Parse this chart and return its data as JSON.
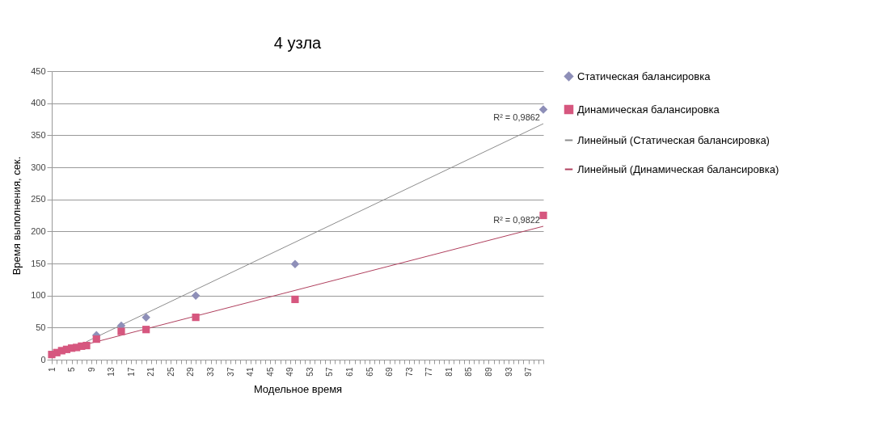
{
  "chart_data": {
    "type": "scatter",
    "title": "4 узла",
    "xlabel": "Модельное время",
    "ylabel": "Время выполнения, сек.",
    "xlim": [
      1,
      100
    ],
    "ylim": [
      0,
      450
    ],
    "yticks": [
      0,
      50,
      100,
      150,
      200,
      250,
      300,
      350,
      400,
      450
    ],
    "xticks": [
      1,
      {
        "value": 2,
        "label": null
      },
      {
        "value": 3,
        "label": null
      },
      {
        "value": 4,
        "label": null
      },
      5,
      {
        "value": 6,
        "label": null
      },
      {
        "value": 7,
        "label": null
      },
      {
        "value": 8,
        "label": null
      },
      9,
      {
        "value": 10,
        "label": null
      },
      {
        "value": 11,
        "label": null
      },
      {
        "value": 12,
        "label": null
      },
      13,
      {
        "value": 14,
        "label": null
      },
      {
        "value": 15,
        "label": null
      },
      {
        "value": 16,
        "label": null
      },
      17,
      {
        "value": 18,
        "label": null
      },
      {
        "value": 19,
        "label": null
      },
      {
        "value": 20,
        "label": null
      },
      21,
      {
        "value": 22,
        "label": null
      },
      {
        "value": 23,
        "label": null
      },
      {
        "value": 24,
        "label": null
      },
      25,
      {
        "value": 26,
        "label": null
      },
      {
        "value": 27,
        "label": null
      },
      {
        "value": 28,
        "label": null
      },
      29,
      {
        "value": 30,
        "label": null
      },
      {
        "value": 31,
        "label": null
      },
      {
        "value": 32,
        "label": null
      },
      33,
      {
        "value": 34,
        "label": null
      },
      {
        "value": 35,
        "label": null
      },
      {
        "value": 36,
        "label": null
      },
      37,
      {
        "value": 38,
        "label": null
      },
      {
        "value": 39,
        "label": null
      },
      {
        "value": 40,
        "label": null
      },
      41,
      {
        "value": 42,
        "label": null
      },
      {
        "value": 43,
        "label": null
      },
      {
        "value": 44,
        "label": null
      },
      45,
      {
        "value": 46,
        "label": null
      },
      {
        "value": 47,
        "label": null
      },
      {
        "value": 48,
        "label": null
      },
      49,
      {
        "value": 50,
        "label": null
      },
      {
        "value": 51,
        "label": null
      },
      {
        "value": 52,
        "label": null
      },
      53,
      {
        "value": 54,
        "label": null
      },
      {
        "value": 55,
        "label": null
      },
      {
        "value": 56,
        "label": null
      },
      57,
      {
        "value": 58,
        "label": null
      },
      {
        "value": 59,
        "label": null
      },
      {
        "value": 60,
        "label": null
      },
      61,
      {
        "value": 62,
        "label": null
      },
      {
        "value": 63,
        "label": null
      },
      {
        "value": 64,
        "label": null
      },
      65,
      {
        "value": 66,
        "label": null
      },
      {
        "value": 67,
        "label": null
      },
      {
        "value": 68,
        "label": null
      },
      69,
      {
        "value": 70,
        "label": null
      },
      {
        "value": 71,
        "label": null
      },
      {
        "value": 72,
        "label": null
      },
      73,
      {
        "value": 74,
        "label": null
      },
      {
        "value": 75,
        "label": null
      },
      {
        "value": 76,
        "label": null
      },
      77,
      {
        "value": 78,
        "label": null
      },
      {
        "value": 79,
        "label": null
      },
      {
        "value": 80,
        "label": null
      },
      81,
      {
        "value": 82,
        "label": null
      },
      {
        "value": 83,
        "label": null
      },
      {
        "value": 84,
        "label": null
      },
      85,
      {
        "value": 86,
        "label": null
      },
      {
        "value": 87,
        "label": null
      },
      {
        "value": 88,
        "label": null
      },
      89,
      {
        "value": 90,
        "label": null
      },
      {
        "value": 91,
        "label": null
      },
      {
        "value": 92,
        "label": null
      },
      93,
      {
        "value": 94,
        "label": null
      },
      {
        "value": 95,
        "label": null
      },
      {
        "value": 96,
        "label": null
      },
      97,
      {
        "value": 98,
        "label": null
      },
      {
        "value": 99,
        "label": null
      },
      {
        "value": 100,
        "label": null
      }
    ],
    "grid": "y",
    "legend": "right",
    "series": [
      {
        "name": "Статическая балансировка",
        "marker": "diamond",
        "color": "#8e8fb8",
        "x": [
          10,
          15,
          20,
          30,
          50,
          100
        ],
        "values": [
          38,
          53,
          66,
          100,
          149,
          390
        ]
      },
      {
        "name": "Динамическая балансировка",
        "marker": "square",
        "color": "#d6577f",
        "x": [
          1,
          2,
          3,
          4,
          5,
          6,
          7,
          8,
          10,
          15,
          20,
          30,
          50,
          100
        ],
        "values": [
          8,
          11,
          14,
          16,
          18,
          19,
          21,
          22,
          32,
          44,
          47,
          66,
          94,
          225
        ]
      },
      {
        "name": "Линейный (Статическая балансировка)",
        "type": "line",
        "marker": "none",
        "color": "#8c8c8c",
        "x": [
          8,
          100
        ],
        "values": [
          28,
          368
        ]
      },
      {
        "name": "Линейный (Динамическая балансировка)",
        "type": "line",
        "marker": "none",
        "color": "#b0405e",
        "x": [
          1,
          100
        ],
        "values": [
          10,
          208
        ]
      }
    ],
    "annotations": [
      {
        "text": "R² = 0,9862",
        "x": 100,
        "y": 368
      },
      {
        "text": "R² = 0,9822",
        "x": 100,
        "y": 208
      }
    ]
  }
}
